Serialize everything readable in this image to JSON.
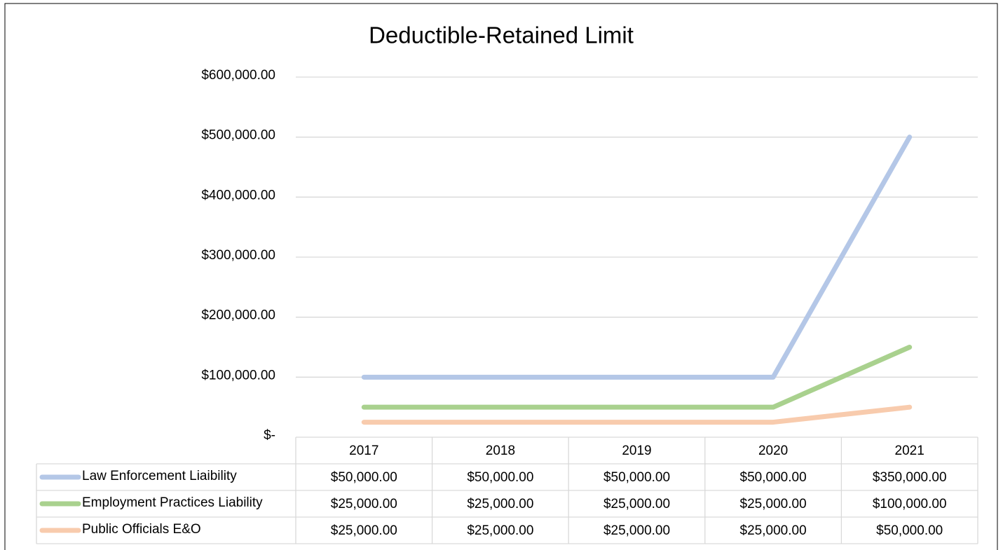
{
  "chart_data": {
    "type": "line",
    "stacked": true,
    "title": "Deductible-Retained Limit",
    "categories": [
      "2017",
      "2018",
      "2019",
      "2020",
      "2021"
    ],
    "series": [
      {
        "name": "Law Enforcement Liaibility",
        "color": "#b4c7e7",
        "values": [
          50000,
          50000,
          50000,
          50000,
          350000
        ],
        "value_labels": [
          "$50,000.00",
          "$50,000.00",
          "$50,000.00",
          "$50,000.00",
          "$350,000.00"
        ]
      },
      {
        "name": "Employment Practices Liability",
        "color": "#a9d18e",
        "values": [
          25000,
          25000,
          25000,
          25000,
          100000
        ],
        "value_labels": [
          "$25,000.00",
          "$25,000.00",
          "$25,000.00",
          "$25,000.00",
          "$100,000.00"
        ]
      },
      {
        "name": "Public Officials E&O",
        "color": "#f8cbad",
        "values": [
          25000,
          25000,
          25000,
          25000,
          50000
        ],
        "value_labels": [
          "$25,000.00",
          "$25,000.00",
          "$25,000.00",
          "$25,000.00",
          "$50,000.00"
        ]
      }
    ],
    "ylim": [
      0,
      600000
    ],
    "yticks": [
      {
        "value": 0,
        "label": "$-"
      },
      {
        "value": 100000,
        "label": "$100,000.00"
      },
      {
        "value": 200000,
        "label": "$200,000.00"
      },
      {
        "value": 300000,
        "label": "$300,000.00"
      },
      {
        "value": 400000,
        "label": "$400,000.00"
      },
      {
        "value": 500000,
        "label": "$500,000.00"
      },
      {
        "value": 600000,
        "label": "$600,000.00"
      }
    ],
    "grid": true,
    "data_table": true
  }
}
